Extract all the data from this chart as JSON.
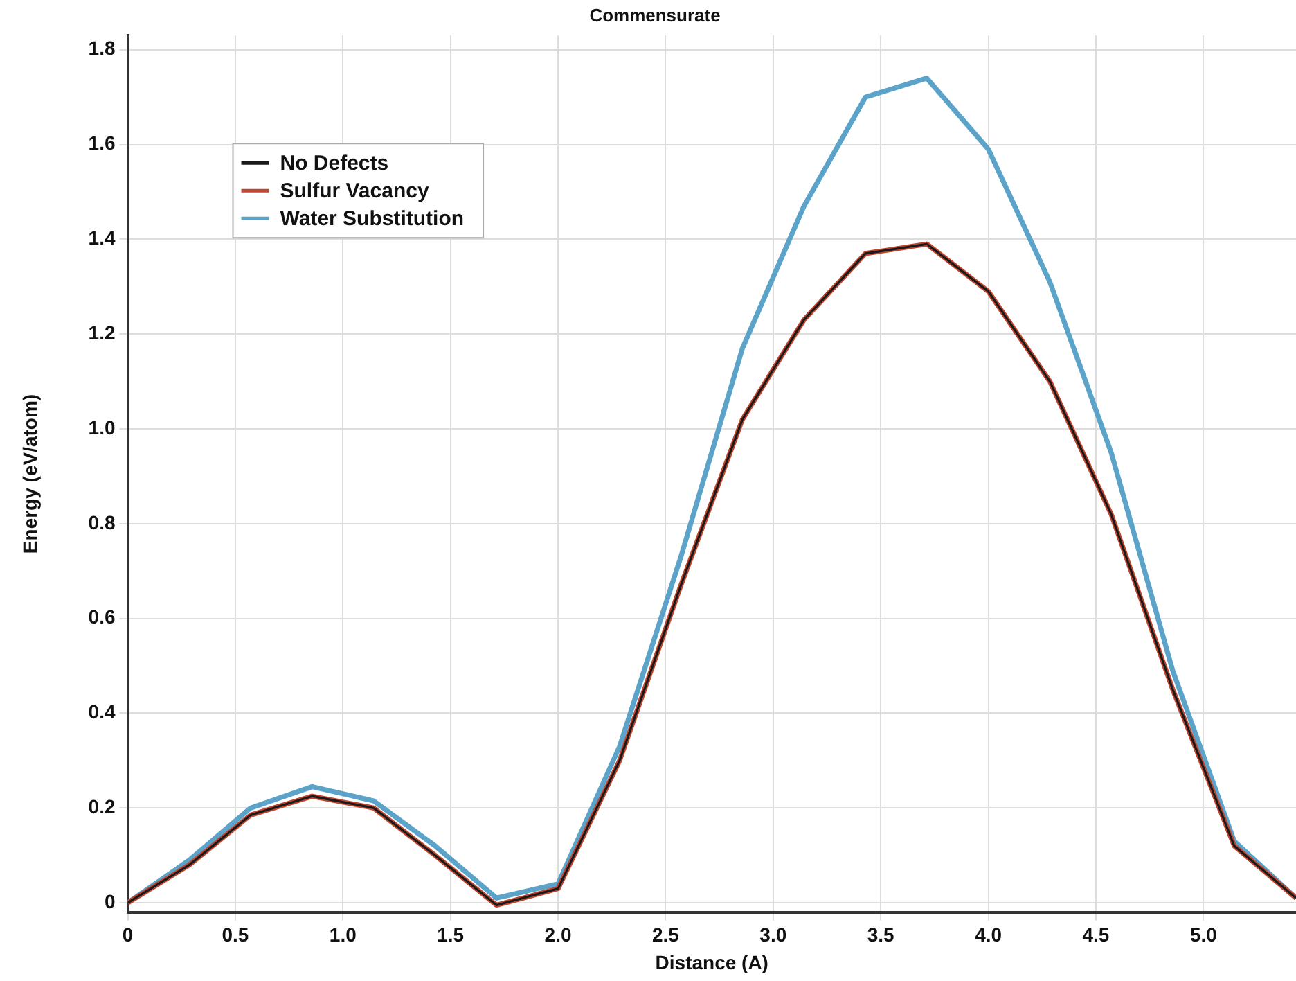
{
  "chart_data": {
    "type": "line",
    "title": "Commensurate",
    "xlabel": "Distance (A)",
    "ylabel": "Energy (eV/atom)",
    "x": [
      0,
      0.286,
      0.571,
      0.857,
      1.143,
      1.429,
      1.714,
      2.0,
      2.286,
      2.571,
      2.857,
      3.143,
      3.429,
      3.714,
      4.0,
      4.286,
      4.571,
      4.857,
      5.143,
      5.43
    ],
    "series": [
      {
        "name": "No Defects",
        "color": "#1a1a1a",
        "values": [
          0.0,
          0.08,
          0.185,
          0.225,
          0.2,
          0.1,
          -0.005,
          0.03,
          0.3,
          0.67,
          1.02,
          1.23,
          1.37,
          1.39,
          1.29,
          1.1,
          0.82,
          0.45,
          0.12,
          0.01
        ]
      },
      {
        "name": "Sulfur Vacancy",
        "color": "#c0452f",
        "values": [
          0.0,
          0.08,
          0.185,
          0.225,
          0.2,
          0.1,
          -0.005,
          0.03,
          0.3,
          0.67,
          1.02,
          1.23,
          1.37,
          1.39,
          1.29,
          1.1,
          0.82,
          0.45,
          0.12,
          0.01
        ]
      },
      {
        "name": "Water Substitution",
        "color": "#5ba3c9",
        "values": [
          0.0,
          0.09,
          0.2,
          0.245,
          0.215,
          0.12,
          0.01,
          0.04,
          0.33,
          0.73,
          1.17,
          1.47,
          1.7,
          1.74,
          1.59,
          1.31,
          0.95,
          0.49,
          0.13,
          0.01
        ]
      }
    ],
    "xlim": [
      0,
      5.43
    ],
    "xticks": [
      0,
      {
        "value": 0.5,
        "label": "0.5"
      },
      {
        "value": 1,
        "label": "1.0"
      },
      {
        "value": 1.5,
        "label": "1.5"
      },
      {
        "value": 2,
        "label": "2.0"
      },
      {
        "value": 2.5,
        "label": "2.5"
      },
      {
        "value": 3,
        "label": "3.0"
      },
      {
        "value": 3.5,
        "label": "3.5"
      },
      {
        "value": 4,
        "label": "4.0"
      },
      {
        "value": 4.5,
        "label": "4.5"
      },
      {
        "value": 5,
        "label": "5.0"
      }
    ],
    "ylim": [
      -0.02,
      1.83
    ],
    "yticks": [
      0,
      0.2,
      0.4,
      0.6,
      0.8,
      {
        "value": 1,
        "label": "1.0"
      },
      1.2,
      1.4,
      1.6,
      1.8
    ],
    "grid": true,
    "legend": "top left",
    "marker": "none",
    "line_style": "solid"
  }
}
